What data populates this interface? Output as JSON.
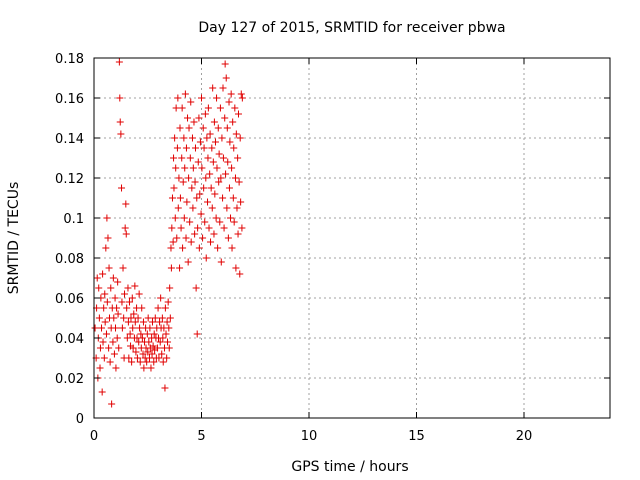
{
  "chart_data": {
    "type": "scatter",
    "title": "Day 127 of 2015, SRMTID for receiver pbwa",
    "xlabel": "GPS time / hours",
    "ylabel": "SRMTID / TECUs",
    "xlim": [
      0,
      24
    ],
    "ylim": [
      0,
      0.18
    ],
    "x_ticks": [
      0,
      5,
      10,
      15,
      20
    ],
    "x_tick_labels": [
      "0",
      "5",
      "10",
      "15",
      "20"
    ],
    "y_ticks": [
      0,
      0.02,
      0.04,
      0.06,
      0.08,
      0.1,
      0.12,
      0.14,
      0.16,
      0.18
    ],
    "y_tick_labels": [
      "0",
      "0.02",
      "0.04",
      "0.06",
      "0.08",
      "0.1",
      "0.12",
      "0.14",
      "0.16",
      "0.18"
    ],
    "grid": true,
    "marker": "plus",
    "color": "#e00000",
    "series": [
      {
        "points": [
          [
            0.05,
            0.045
          ],
          [
            0.1,
            0.03
          ],
          [
            0.12,
            0.055
          ],
          [
            0.15,
            0.07
          ],
          [
            0.18,
            0.02
          ],
          [
            0.2,
            0.04
          ],
          [
            0.22,
            0.065
          ],
          [
            0.25,
            0.05
          ],
          [
            0.28,
            0.025
          ],
          [
            0.3,
            0.035
          ],
          [
            0.32,
            0.06
          ],
          [
            0.35,
            0.045
          ],
          [
            0.38,
            0.013
          ],
          [
            0.4,
            0.072
          ],
          [
            0.42,
            0.038
          ],
          [
            0.45,
            0.055
          ],
          [
            0.48,
            0.03
          ],
          [
            0.5,
            0.062
          ],
          [
            0.52,
            0.048
          ],
          [
            0.55,
            0.085
          ],
          [
            0.58,
            0.042
          ],
          [
            0.6,
            0.1
          ],
          [
            0.62,
            0.058
          ],
          [
            0.65,
            0.09
          ],
          [
            0.68,
            0.035
          ],
          [
            0.7,
            0.075
          ],
          [
            0.72,
            0.05
          ],
          [
            0.75,
            0.028
          ],
          [
            0.78,
            0.065
          ],
          [
            0.8,
            0.045
          ],
          [
            0.82,
            0.007
          ],
          [
            0.85,
            0.055
          ],
          [
            0.88,
            0.038
          ],
          [
            0.9,
            0.07
          ],
          [
            0.92,
            0.05
          ],
          [
            0.95,
            0.032
          ],
          [
            0.98,
            0.06
          ],
          [
            1.0,
            0.045
          ],
          [
            1.02,
            0.025
          ],
          [
            1.05,
            0.055
          ],
          [
            1.08,
            0.04
          ],
          [
            1.1,
            0.068
          ],
          [
            1.12,
            0.052
          ],
          [
            1.15,
            0.035
          ],
          [
            1.18,
            0.178
          ],
          [
            1.2,
            0.16
          ],
          [
            1.22,
            0.148
          ],
          [
            1.25,
            0.142
          ],
          [
            1.28,
            0.115
          ],
          [
            1.3,
            0.058
          ],
          [
            1.32,
            0.045
          ],
          [
            1.35,
            0.075
          ],
          [
            1.38,
            0.05
          ],
          [
            1.4,
            0.03
          ],
          [
            1.42,
            0.062
          ],
          [
            1.45,
            0.095
          ],
          [
            1.48,
            0.107
          ],
          [
            1.5,
            0.092
          ],
          [
            1.52,
            0.055
          ],
          [
            1.55,
            0.04
          ],
          [
            1.58,
            0.065
          ],
          [
            1.6,
            0.048
          ],
          [
            1.62,
            0.03
          ],
          [
            1.65,
            0.058
          ],
          [
            1.68,
            0.042
          ],
          [
            1.7,
            0.036
          ],
          [
            1.72,
            0.05
          ],
          [
            1.75,
            0.028
          ],
          [
            1.78,
            0.06
          ],
          [
            1.8,
            0.045
          ],
          [
            1.82,
            0.035
          ],
          [
            1.85,
            0.052
          ],
          [
            1.88,
            0.04
          ],
          [
            1.9,
            0.066
          ],
          [
            1.92,
            0.048
          ],
          [
            1.95,
            0.033
          ],
          [
            1.98,
            0.055
          ],
          [
            2.0,
            0.04
          ],
          [
            2.02,
            0.03
          ],
          [
            2.05,
            0.05
          ],
          [
            2.08,
            0.038
          ],
          [
            2.1,
            0.062
          ],
          [
            2.12,
            0.045
          ],
          [
            2.15,
            0.028
          ],
          [
            2.18,
            0.042
          ],
          [
            2.2,
            0.035
          ],
          [
            2.22,
            0.055
          ],
          [
            2.25,
            0.04
          ],
          [
            2.28,
            0.032
          ],
          [
            2.3,
            0.048
          ],
          [
            2.32,
            0.025
          ],
          [
            2.35,
            0.038
          ],
          [
            2.38,
            0.03
          ],
          [
            2.4,
            0.045
          ],
          [
            2.42,
            0.035
          ],
          [
            2.45,
            0.028
          ],
          [
            2.48,
            0.042
          ],
          [
            2.5,
            0.033
          ],
          [
            2.52,
            0.05
          ],
          [
            2.55,
            0.038
          ],
          [
            2.58,
            0.03
          ],
          [
            2.6,
            0.045
          ],
          [
            2.62,
            0.035
          ],
          [
            2.65,
            0.025
          ],
          [
            2.68,
            0.04
          ],
          [
            2.7,
            0.032
          ],
          [
            2.72,
            0.048
          ],
          [
            2.75,
            0.036
          ],
          [
            2.78,
            0.028
          ],
          [
            2.8,
            0.042
          ],
          [
            2.82,
            0.034
          ],
          [
            2.85,
            0.05
          ],
          [
            2.88,
            0.04
          ],
          [
            2.9,
            0.03
          ],
          [
            2.92,
            0.045
          ],
          [
            2.95,
            0.035
          ],
          [
            2.98,
            0.055
          ],
          [
            3.0,
            0.04
          ],
          [
            3.02,
            0.03
          ],
          [
            3.05,
            0.048
          ],
          [
            3.08,
            0.038
          ],
          [
            3.1,
            0.06
          ],
          [
            3.12,
            0.045
          ],
          [
            3.15,
            0.032
          ],
          [
            3.18,
            0.05
          ],
          [
            3.2,
            0.04
          ],
          [
            3.22,
            0.028
          ],
          [
            3.25,
            0.045
          ],
          [
            3.28,
            0.035
          ],
          [
            3.3,
            0.015
          ],
          [
            3.32,
            0.055
          ],
          [
            3.35,
            0.042
          ],
          [
            3.38,
            0.03
          ],
          [
            3.4,
            0.048
          ],
          [
            3.42,
            0.038
          ],
          [
            3.45,
            0.058
          ],
          [
            3.48,
            0.045
          ],
          [
            3.5,
            0.035
          ],
          [
            3.52,
            0.065
          ],
          [
            3.55,
            0.05
          ],
          [
            3.58,
            0.085
          ],
          [
            3.6,
            0.075
          ],
          [
            3.62,
            0.095
          ],
          [
            3.65,
            0.11
          ],
          [
            3.68,
            0.088
          ],
          [
            3.7,
            0.13
          ],
          [
            3.72,
            0.115
          ],
          [
            3.75,
            0.14
          ],
          [
            3.78,
            0.1
          ],
          [
            3.8,
            0.125
          ],
          [
            3.82,
            0.155
          ],
          [
            3.85,
            0.09
          ],
          [
            3.88,
            0.135
          ],
          [
            3.9,
            0.16
          ],
          [
            3.92,
            0.105
          ],
          [
            3.95,
            0.12
          ],
          [
            3.98,
            0.075
          ],
          [
            4.0,
            0.145
          ],
          [
            4.02,
            0.11
          ],
          [
            4.05,
            0.095
          ],
          [
            4.08,
            0.13
          ],
          [
            4.1,
            0.155
          ],
          [
            4.12,
            0.085
          ],
          [
            4.15,
            0.118
          ],
          [
            4.18,
            0.14
          ],
          [
            4.2,
            0.1
          ],
          [
            4.22,
            0.125
          ],
          [
            4.25,
            0.162
          ],
          [
            4.28,
            0.09
          ],
          [
            4.3,
            0.135
          ],
          [
            4.32,
            0.108
          ],
          [
            4.35,
            0.15
          ],
          [
            4.38,
            0.078
          ],
          [
            4.4,
            0.12
          ],
          [
            4.42,
            0.145
          ],
          [
            4.45,
            0.098
          ],
          [
            4.48,
            0.13
          ],
          [
            4.5,
            0.158
          ],
          [
            4.52,
            0.088
          ],
          [
            4.55,
            0.115
          ],
          [
            4.58,
            0.14
          ],
          [
            4.6,
            0.105
          ],
          [
            4.62,
            0.125
          ],
          [
            4.65,
            0.148
          ],
          [
            4.68,
            0.092
          ],
          [
            4.7,
            0.118
          ],
          [
            4.72,
            0.135
          ],
          [
            4.75,
            0.065
          ],
          [
            4.78,
            0.11
          ],
          [
            4.8,
            0.042
          ],
          [
            4.82,
            0.095
          ],
          [
            4.85,
            0.128
          ],
          [
            4.88,
            0.15
          ],
          [
            4.9,
            0.085
          ],
          [
            4.92,
            0.112
          ],
          [
            4.95,
            0.138
          ],
          [
            4.98,
            0.102
          ],
          [
            5.0,
            0.16
          ],
          [
            5.02,
            0.125
          ],
          [
            5.05,
            0.09
          ],
          [
            5.08,
            0.145
          ],
          [
            5.1,
            0.115
          ],
          [
            5.12,
            0.135
          ],
          [
            5.15,
            0.098
          ],
          [
            5.18,
            0.152
          ],
          [
            5.2,
            0.12
          ],
          [
            5.22,
            0.08
          ],
          [
            5.25,
            0.14
          ],
          [
            5.28,
            0.108
          ],
          [
            5.3,
            0.13
          ],
          [
            5.32,
            0.155
          ],
          [
            5.35,
            0.095
          ],
          [
            5.38,
            0.122
          ],
          [
            5.4,
            0.142
          ],
          [
            5.42,
            0.088
          ],
          [
            5.45,
            0.115
          ],
          [
            5.48,
            0.135
          ],
          [
            5.5,
            0.105
          ],
          [
            5.52,
            0.165
          ],
          [
            5.55,
            0.128
          ],
          [
            5.58,
            0.092
          ],
          [
            5.6,
            0.148
          ],
          [
            5.62,
            0.112
          ],
          [
            5.65,
            0.138
          ],
          [
            5.68,
            0.1
          ],
          [
            5.7,
            0.16
          ],
          [
            5.72,
            0.125
          ],
          [
            5.75,
            0.085
          ],
          [
            5.78,
            0.145
          ],
          [
            5.8,
            0.118
          ],
          [
            5.82,
            0.132
          ],
          [
            5.85,
            0.098
          ],
          [
            5.88,
            0.155
          ],
          [
            5.9,
            0.12
          ],
          [
            5.92,
            0.078
          ],
          [
            5.95,
            0.14
          ],
          [
            5.98,
            0.11
          ],
          [
            6.0,
            0.165
          ],
          [
            6.02,
            0.13
          ],
          [
            6.05,
            0.095
          ],
          [
            6.08,
            0.15
          ],
          [
            6.1,
            0.177
          ],
          [
            6.12,
            0.122
          ],
          [
            6.15,
            0.17
          ],
          [
            6.18,
            0.105
          ],
          [
            6.2,
            0.145
          ],
          [
            6.22,
            0.128
          ],
          [
            6.25,
            0.09
          ],
          [
            6.28,
            0.158
          ],
          [
            6.3,
            0.115
          ],
          [
            6.32,
            0.138
          ],
          [
            6.35,
            0.1
          ],
          [
            6.38,
            0.162
          ],
          [
            6.4,
            0.125
          ],
          [
            6.42,
            0.085
          ],
          [
            6.45,
            0.148
          ],
          [
            6.48,
            0.11
          ],
          [
            6.5,
            0.135
          ],
          [
            6.52,
            0.098
          ],
          [
            6.55,
            0.155
          ],
          [
            6.58,
            0.12
          ],
          [
            6.6,
            0.075
          ],
          [
            6.62,
            0.142
          ],
          [
            6.65,
            0.105
          ],
          [
            6.68,
            0.13
          ],
          [
            6.7,
            0.092
          ],
          [
            6.72,
            0.152
          ],
          [
            6.75,
            0.118
          ],
          [
            6.78,
            0.072
          ],
          [
            6.8,
            0.14
          ],
          [
            6.82,
            0.108
          ],
          [
            6.85,
            0.162
          ],
          [
            6.88,
            0.095
          ],
          [
            6.9,
            0.16
          ]
        ]
      }
    ]
  }
}
